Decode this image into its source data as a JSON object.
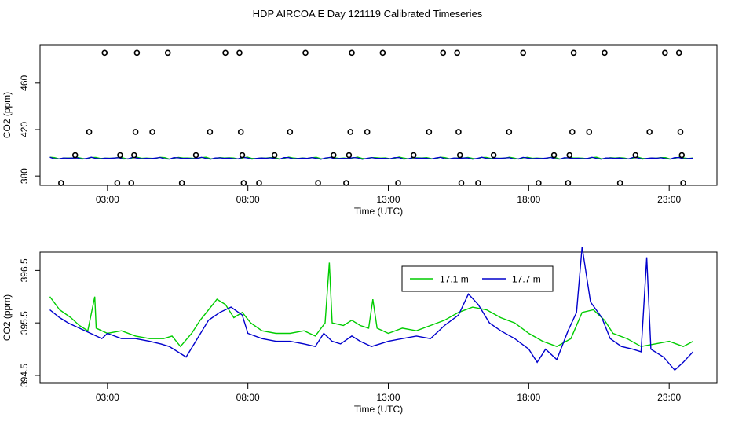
{
  "title": "HDP AIRCOA E  Day 121119  Calibrated Timeseries",
  "chart_data": [
    {
      "type": "scatter",
      "xlabel": "Time (UTC)",
      "ylabel": "CO2 (ppm)",
      "xlim": [
        0.6,
        24.7
      ],
      "ylim": [
        372,
        493
      ],
      "x_ticks": [
        3,
        8,
        13,
        18,
        23
      ],
      "x_tick_labels": [
        "03:00",
        "08:00",
        "13:00",
        "18:00",
        "23:00"
      ],
      "y_ticks": [
        380,
        420,
        460
      ],
      "y_tick_labels": [
        "380",
        "420",
        "460"
      ],
      "series": [
        {
          "marker": "open-circle",
          "color": "#000000",
          "points": [
            [
              1.35,
              374
            ],
            [
              1.85,
              398
            ],
            [
              2.35,
              418
            ],
            [
              2.9,
              486
            ],
            [
              3.35,
              374
            ],
            [
              3.45,
              398
            ],
            [
              3.85,
              374
            ],
            [
              3.95,
              398
            ],
            [
              4.0,
              418
            ],
            [
              4.05,
              486
            ],
            [
              4.6,
              418
            ],
            [
              5.15,
              486
            ],
            [
              5.65,
              374
            ],
            [
              6.15,
              398
            ],
            [
              6.65,
              418
            ],
            [
              7.2,
              486
            ],
            [
              7.7,
              486
            ],
            [
              7.75,
              418
            ],
            [
              7.8,
              398
            ],
            [
              7.85,
              374
            ],
            [
              8.4,
              374
            ],
            [
              8.95,
              398
            ],
            [
              9.5,
              418
            ],
            [
              10.05,
              486
            ],
            [
              10.5,
              374
            ],
            [
              11.05,
              398
            ],
            [
              11.5,
              374
            ],
            [
              11.6,
              398
            ],
            [
              11.65,
              418
            ],
            [
              11.7,
              486
            ],
            [
              12.25,
              418
            ],
            [
              12.8,
              486
            ],
            [
              13.35,
              374
            ],
            [
              13.9,
              398
            ],
            [
              14.45,
              418
            ],
            [
              14.95,
              486
            ],
            [
              15.45,
              486
            ],
            [
              15.5,
              418
            ],
            [
              15.55,
              398
            ],
            [
              15.6,
              374
            ],
            [
              16.2,
              374
            ],
            [
              16.75,
              398
            ],
            [
              17.3,
              418
            ],
            [
              17.8,
              486
            ],
            [
              18.35,
              374
            ],
            [
              18.9,
              398
            ],
            [
              19.4,
              374
            ],
            [
              19.45,
              398
            ],
            [
              19.55,
              418
            ],
            [
              19.6,
              486
            ],
            [
              20.15,
              418
            ],
            [
              20.7,
              486
            ],
            [
              21.25,
              374
            ],
            [
              21.8,
              398
            ],
            [
              22.3,
              418
            ],
            [
              22.85,
              486
            ],
            [
              23.35,
              486
            ],
            [
              23.4,
              418
            ],
            [
              23.45,
              398
            ],
            [
              23.5,
              374
            ]
          ]
        },
        {
          "marker": "line",
          "color": "#00cc00",
          "baseline": 395.5
        },
        {
          "marker": "line",
          "color": "#0000cc",
          "baseline": 395.3
        }
      ]
    },
    {
      "type": "line",
      "xlabel": "Time (UTC)",
      "ylabel": "CO2 (ppm)",
      "xlim": [
        0.6,
        24.7
      ],
      "ylim": [
        394.35,
        396.85
      ],
      "x_ticks": [
        3,
        8,
        13,
        18,
        23
      ],
      "x_tick_labels": [
        "03:00",
        "08:00",
        "13:00",
        "18:00",
        "23:00"
      ],
      "y_ticks": [
        394.5,
        395.5,
        396.5
      ],
      "y_tick_labels": [
        "394.5",
        "395.5",
        "396.5"
      ],
      "legend_position": "top-center",
      "series": [
        {
          "name": "17.1 m",
          "color": "#00cc00",
          "points": [
            [
              0.95,
              396.0
            ],
            [
              1.3,
              395.75
            ],
            [
              1.7,
              395.6
            ],
            [
              2.0,
              395.45
            ],
            [
              2.3,
              395.35
            ],
            [
              2.55,
              396.0
            ],
            [
              2.6,
              395.4
            ],
            [
              3.0,
              395.3
            ],
            [
              3.5,
              395.35
            ],
            [
              4.0,
              395.25
            ],
            [
              4.5,
              395.2
            ],
            [
              5.0,
              395.2
            ],
            [
              5.3,
              395.25
            ],
            [
              5.6,
              395.05
            ],
            [
              6.0,
              395.3
            ],
            [
              6.3,
              395.55
            ],
            [
              6.6,
              395.75
            ],
            [
              6.9,
              395.95
            ],
            [
              7.2,
              395.85
            ],
            [
              7.5,
              395.6
            ],
            [
              7.8,
              395.7
            ],
            [
              8.1,
              395.5
            ],
            [
              8.5,
              395.35
            ],
            [
              9.0,
              395.3
            ],
            [
              9.5,
              395.3
            ],
            [
              10.0,
              395.35
            ],
            [
              10.4,
              395.25
            ],
            [
              10.75,
              395.5
            ],
            [
              10.9,
              396.65
            ],
            [
              11.0,
              395.5
            ],
            [
              11.4,
              395.45
            ],
            [
              11.7,
              395.55
            ],
            [
              12.0,
              395.45
            ],
            [
              12.3,
              395.4
            ],
            [
              12.45,
              395.95
            ],
            [
              12.6,
              395.4
            ],
            [
              13.0,
              395.3
            ],
            [
              13.5,
              395.4
            ],
            [
              14.0,
              395.35
            ],
            [
              14.5,
              395.45
            ],
            [
              15.0,
              395.55
            ],
            [
              15.5,
              395.7
            ],
            [
              16.0,
              395.8
            ],
            [
              16.5,
              395.75
            ],
            [
              17.0,
              395.6
            ],
            [
              17.5,
              395.5
            ],
            [
              18.0,
              395.3
            ],
            [
              18.5,
              395.15
            ],
            [
              19.0,
              395.05
            ],
            [
              19.5,
              395.2
            ],
            [
              19.9,
              395.7
            ],
            [
              20.3,
              395.75
            ],
            [
              20.7,
              395.55
            ],
            [
              21.0,
              395.3
            ],
            [
              21.5,
              395.2
            ],
            [
              22.0,
              395.05
            ],
            [
              22.5,
              395.1
            ],
            [
              23.0,
              395.15
            ],
            [
              23.5,
              395.05
            ],
            [
              23.85,
              395.15
            ]
          ]
        },
        {
          "name": "17.7 m",
          "color": "#0000cc",
          "points": [
            [
              0.95,
              395.75
            ],
            [
              1.3,
              395.6
            ],
            [
              1.6,
              395.5
            ],
            [
              2.0,
              395.4
            ],
            [
              2.4,
              395.3
            ],
            [
              2.8,
              395.2
            ],
            [
              3.0,
              395.3
            ],
            [
              3.5,
              395.2
            ],
            [
              4.0,
              395.2
            ],
            [
              4.5,
              395.15
            ],
            [
              4.9,
              395.1
            ],
            [
              5.2,
              395.05
            ],
            [
              5.5,
              394.95
            ],
            [
              5.8,
              394.85
            ],
            [
              6.2,
              395.2
            ],
            [
              6.6,
              395.55
            ],
            [
              7.0,
              395.7
            ],
            [
              7.4,
              395.8
            ],
            [
              7.8,
              395.65
            ],
            [
              8.0,
              395.3
            ],
            [
              8.5,
              395.2
            ],
            [
              9.0,
              395.15
            ],
            [
              9.5,
              395.15
            ],
            [
              10.0,
              395.1
            ],
            [
              10.4,
              395.05
            ],
            [
              10.7,
              395.3
            ],
            [
              11.0,
              395.15
            ],
            [
              11.3,
              395.1
            ],
            [
              11.7,
              395.25
            ],
            [
              12.0,
              395.15
            ],
            [
              12.4,
              395.05
            ],
            [
              12.7,
              395.1
            ],
            [
              13.0,
              395.15
            ],
            [
              13.5,
              395.2
            ],
            [
              14.0,
              395.25
            ],
            [
              14.5,
              395.2
            ],
            [
              15.0,
              395.45
            ],
            [
              15.5,
              395.65
            ],
            [
              15.85,
              396.05
            ],
            [
              16.2,
              395.85
            ],
            [
              16.6,
              395.5
            ],
            [
              17.0,
              395.35
            ],
            [
              17.5,
              395.2
            ],
            [
              18.0,
              395.0
            ],
            [
              18.3,
              394.75
            ],
            [
              18.6,
              395.0
            ],
            [
              19.0,
              394.8
            ],
            [
              19.4,
              395.35
            ],
            [
              19.7,
              395.7
            ],
            [
              19.9,
              396.95
            ],
            [
              20.2,
              395.9
            ],
            [
              20.6,
              395.6
            ],
            [
              20.9,
              395.2
            ],
            [
              21.3,
              395.05
            ],
            [
              21.7,
              395.0
            ],
            [
              22.0,
              394.95
            ],
            [
              22.2,
              396.75
            ],
            [
              22.35,
              395.0
            ],
            [
              22.8,
              394.85
            ],
            [
              23.2,
              394.6
            ],
            [
              23.5,
              394.75
            ],
            [
              23.85,
              394.95
            ]
          ]
        }
      ]
    }
  ]
}
